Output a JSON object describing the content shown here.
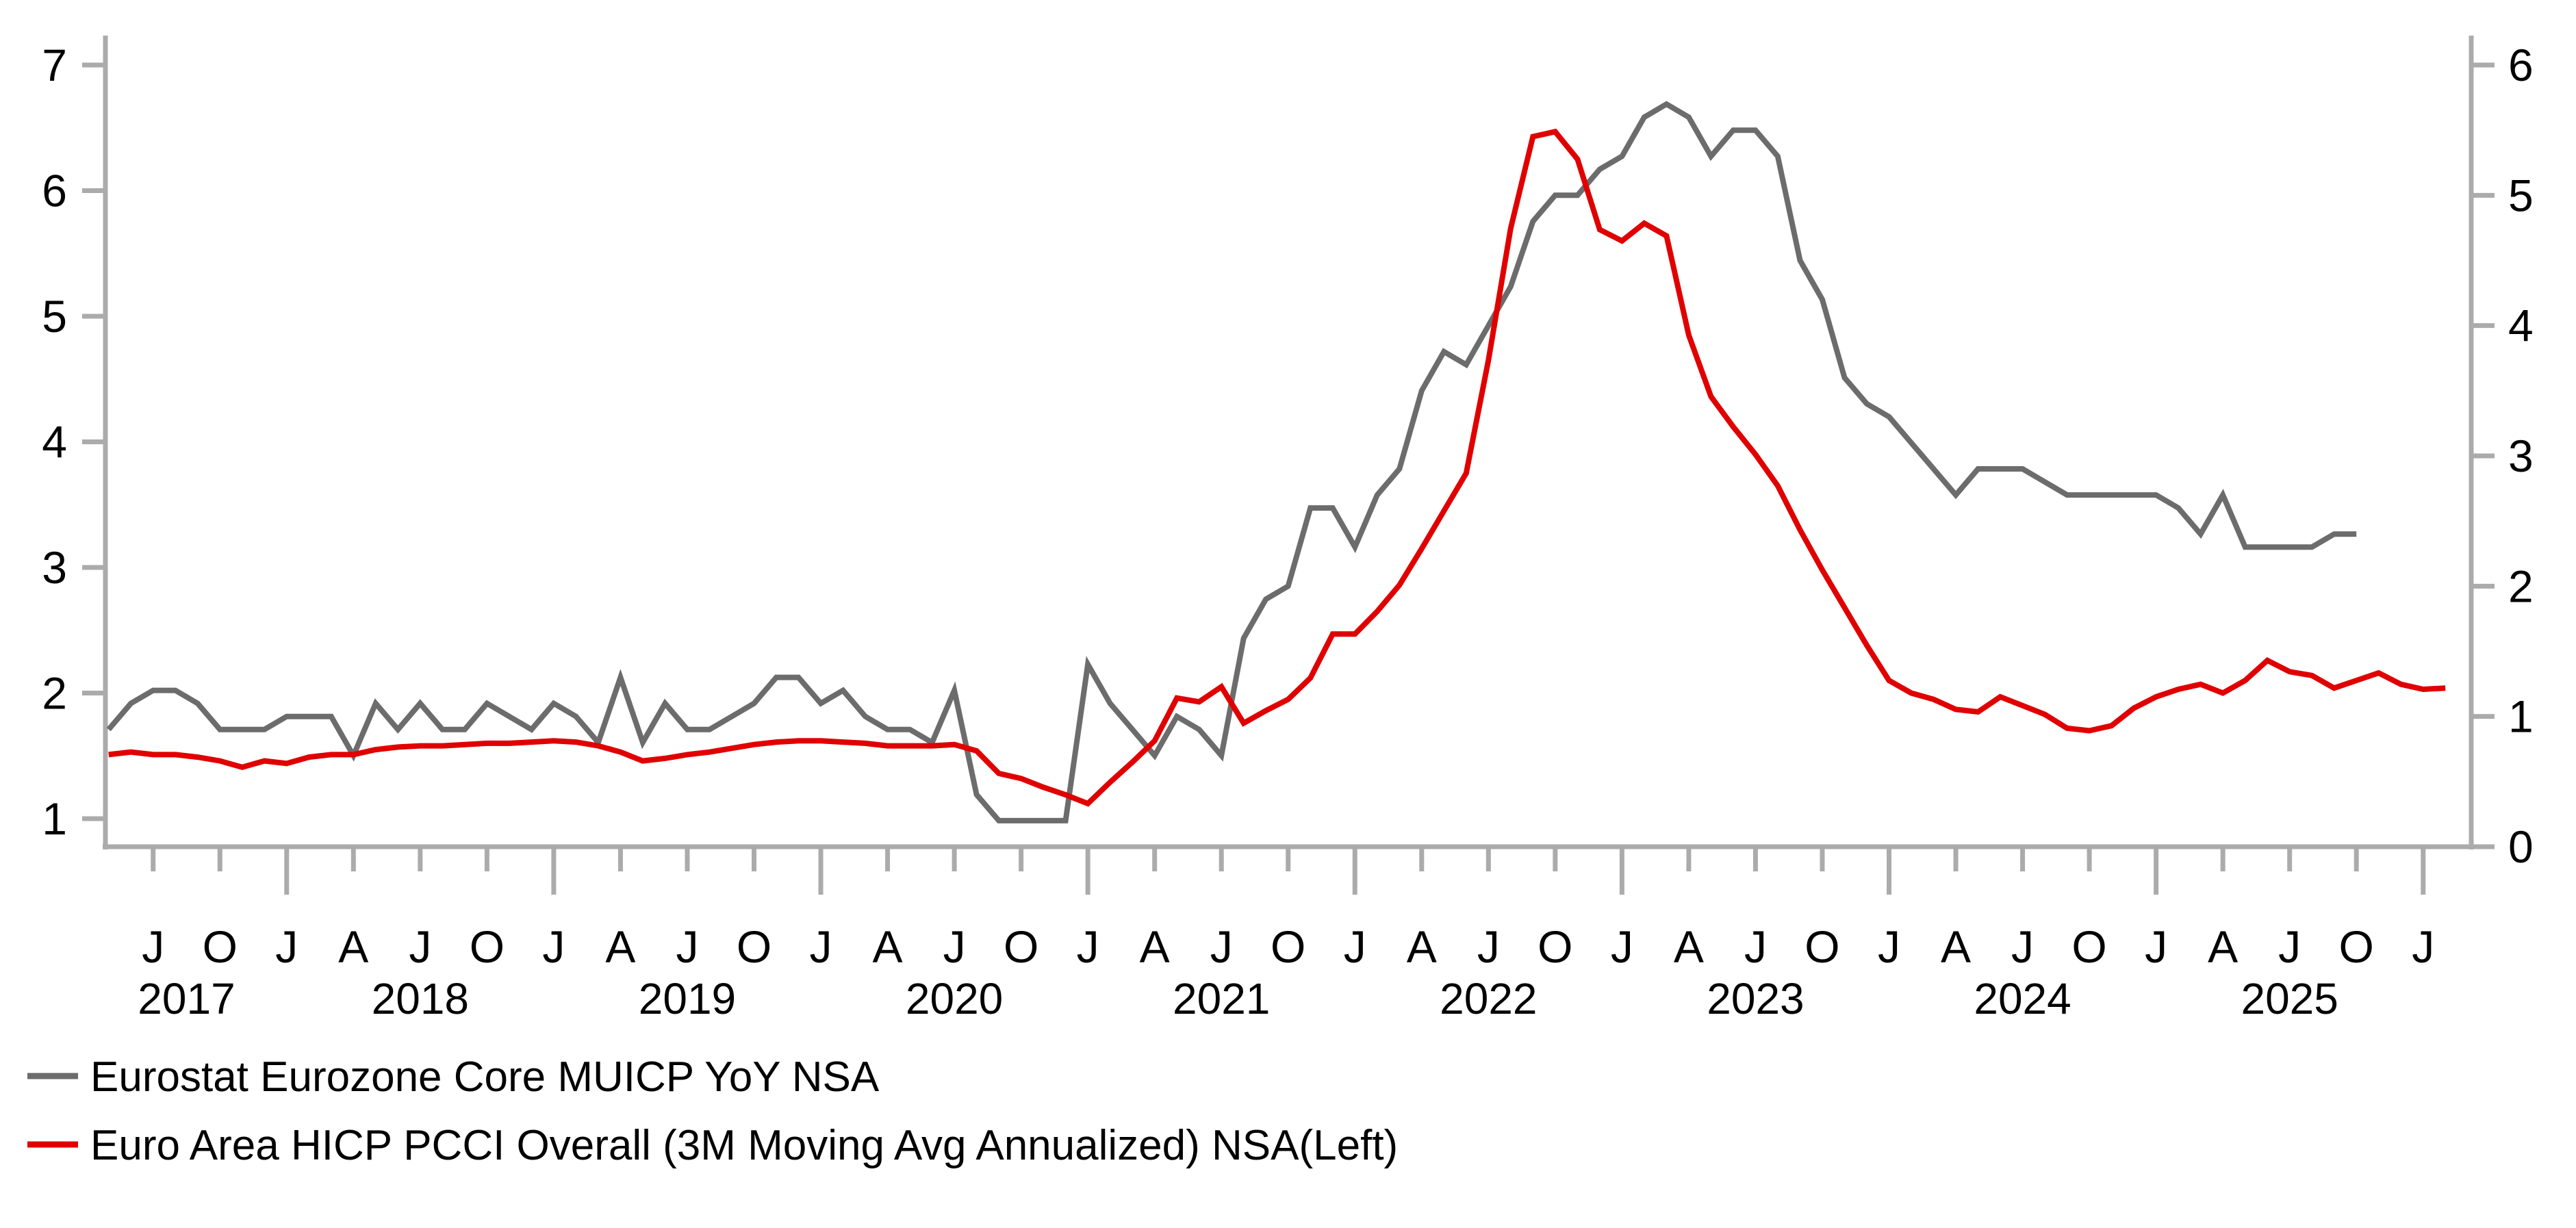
{
  "chart_data": {
    "type": "line",
    "title": "",
    "x_unit": "month",
    "start_month": "2017-05",
    "grid": false,
    "legend_position": "bottom-left",
    "background_color": "#ffffff",
    "axis_color": "#ABABAB",
    "left_axis": {
      "ticks": [
        7,
        6,
        5,
        4,
        3,
        2,
        1
      ],
      "min": 1,
      "max": 7,
      "side": "left"
    },
    "right_axis": {
      "ticks": [
        6,
        5,
        4,
        3,
        2,
        1,
        0
      ],
      "min": 0,
      "max": 6,
      "side": "right"
    },
    "x_axis": {
      "month_labels": [
        "J",
        "O",
        "J",
        "A",
        "J",
        "O",
        "J",
        "A",
        "J",
        "O",
        "J",
        "A",
        "J",
        "O",
        "J",
        "A",
        "J",
        "O",
        "J",
        "A",
        "J",
        "O",
        "J",
        "A",
        "J",
        "O",
        "J",
        "A",
        "J",
        "O",
        "J",
        "A",
        "J",
        "O",
        "J"
      ],
      "first_label_month_offset": 2,
      "label_step_months": 3,
      "year_labels": [
        {
          "text": "2017",
          "month_offset": 3.5
        },
        {
          "text": "2018",
          "month_offset": 14
        },
        {
          "text": "2019",
          "month_offset": 26
        },
        {
          "text": "2020",
          "month_offset": 38
        },
        {
          "text": "2021",
          "month_offset": 50
        },
        {
          "text": "2022",
          "month_offset": 62
        },
        {
          "text": "2023",
          "month_offset": 74
        },
        {
          "text": "2024",
          "month_offset": 86
        },
        {
          "text": "2025",
          "month_offset": 98
        }
      ]
    },
    "series": [
      {
        "name": "Eurostat Eurozone Core MUICP YoY NSA",
        "axis": "right",
        "color": "#6C6C6C",
        "values": [
          0.9,
          1.1,
          1.2,
          1.2,
          1.1,
          0.9,
          0.9,
          0.9,
          1.0,
          1.0,
          1.0,
          0.7,
          1.1,
          0.9,
          1.1,
          0.9,
          0.9,
          1.1,
          1.0,
          0.9,
          1.1,
          1.0,
          0.8,
          1.3,
          0.8,
          1.1,
          0.9,
          0.9,
          1.0,
          1.1,
          1.3,
          1.3,
          1.1,
          1.2,
          1.0,
          0.9,
          0.9,
          0.8,
          1.2,
          0.4,
          0.2,
          0.2,
          0.2,
          0.2,
          1.4,
          1.1,
          0.9,
          0.7,
          1.0,
          0.9,
          0.7,
          1.6,
          1.9,
          2.0,
          2.6,
          2.6,
          2.3,
          2.7,
          2.9,
          3.5,
          3.8,
          3.7,
          4.0,
          4.3,
          4.8,
          5.0,
          5.0,
          5.2,
          5.3,
          5.6,
          5.7,
          5.6,
          5.3,
          5.5,
          5.5,
          5.3,
          4.5,
          4.2,
          3.6,
          3.4,
          3.3,
          3.1,
          2.9,
          2.7,
          2.9,
          2.9,
          2.9,
          2.8,
          2.7,
          2.7,
          2.7,
          2.7,
          2.7,
          2.6,
          2.4,
          2.7,
          2.3,
          2.3,
          2.3,
          2.3,
          2.4,
          2.4
        ]
      },
      {
        "name": "Euro Area HICP PCCI Overall (3M Moving Avg Annualized) NSA(Left)",
        "axis": "left",
        "color": "#E00000",
        "values": [
          1.51,
          1.53,
          1.51,
          1.51,
          1.49,
          1.46,
          1.41,
          1.46,
          1.44,
          1.49,
          1.51,
          1.51,
          1.55,
          1.57,
          1.58,
          1.58,
          1.59,
          1.6,
          1.6,
          1.61,
          1.62,
          1.61,
          1.58,
          1.53,
          1.46,
          1.48,
          1.51,
          1.53,
          1.56,
          1.59,
          1.61,
          1.62,
          1.62,
          1.61,
          1.6,
          1.58,
          1.58,
          1.58,
          1.59,
          1.54,
          1.36,
          1.32,
          1.25,
          1.19,
          1.12,
          1.29,
          1.45,
          1.62,
          1.96,
          1.93,
          2.05,
          1.76,
          1.86,
          1.95,
          2.12,
          2.47,
          2.47,
          2.65,
          2.86,
          3.15,
          3.45,
          3.75,
          4.65,
          5.7,
          6.43,
          6.47,
          6.25,
          5.69,
          5.6,
          5.74,
          5.64,
          4.85,
          4.36,
          4.12,
          3.9,
          3.65,
          3.3,
          2.98,
          2.68,
          2.38,
          2.1,
          2.0,
          1.95,
          1.87,
          1.85,
          1.97,
          1.9,
          1.83,
          1.72,
          1.7,
          1.74,
          1.88,
          1.97,
          2.03,
          2.07,
          2.0,
          2.1,
          2.26,
          2.17,
          2.14,
          2.04,
          2.1,
          2.16,
          2.07,
          2.03,
          2.04
        ]
      }
    ]
  }
}
